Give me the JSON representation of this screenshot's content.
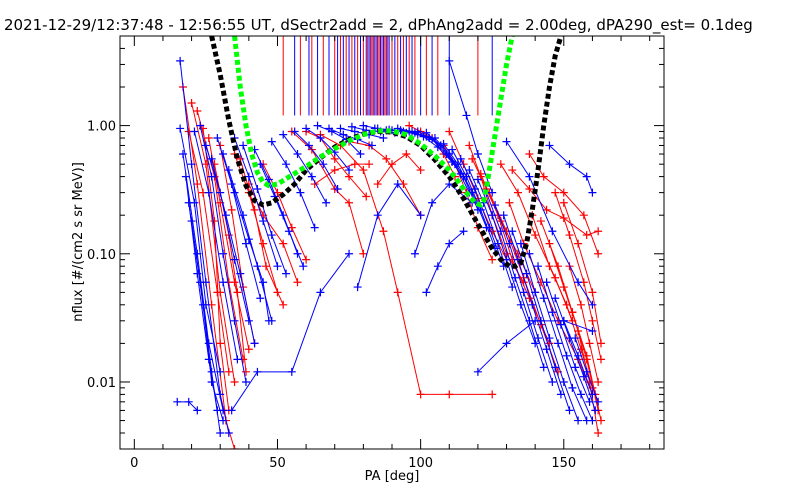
{
  "chart_data": {
    "type": "scatter",
    "title": "2021-12-29/12:37:48 - 12:56:55 UT, dSectr2add = 2, dPhAng2add = 2.00deg, dPA290_est=   0.1deg",
    "xlabel": "PA [deg]",
    "ylabel": "nflux [#/(cm2 s sr MeV)]",
    "xlim": [
      -5,
      185
    ],
    "ylim": [
      0.003,
      5.0
    ],
    "yscale": "log",
    "grid": false,
    "xticks": [
      0,
      50,
      100,
      150
    ],
    "xtick_labels": [
      "0",
      "50",
      "100",
      "150"
    ],
    "yticks": [
      0.01,
      0.1,
      1.0
    ],
    "ytick_labels": [
      "0.01",
      "0.10",
      "1.00"
    ],
    "colors": {
      "red": "#ff0000",
      "blue": "#0000ff",
      "black": "#000000",
      "green": "#00ff00"
    },
    "series": [
      {
        "color": "black",
        "style": "dashed",
        "x": [
          27,
          30,
          33,
          36,
          39,
          42,
          45,
          48,
          52,
          56,
          60,
          65,
          70,
          75,
          80,
          85,
          90,
          95,
          100,
          105,
          110,
          115,
          120,
          125,
          128,
          131,
          133,
          135,
          137,
          139,
          141,
          143,
          145,
          147,
          149
        ],
        "y": [
          5.0,
          2.5,
          1.1,
          0.55,
          0.34,
          0.26,
          0.24,
          0.25,
          0.29,
          0.35,
          0.45,
          0.56,
          0.68,
          0.78,
          0.86,
          0.9,
          0.89,
          0.82,
          0.7,
          0.54,
          0.4,
          0.27,
          0.17,
          0.11,
          0.09,
          0.08,
          0.08,
          0.085,
          0.12,
          0.22,
          0.45,
          1.0,
          2.0,
          3.5,
          5.0
        ]
      },
      {
        "color": "green",
        "style": "dashed",
        "x": [
          35,
          37,
          39,
          41,
          43,
          45,
          47,
          50,
          55,
          60,
          65,
          70,
          75,
          80,
          85,
          90,
          95,
          100,
          105,
          110,
          113,
          116,
          119,
          121,
          122,
          123,
          124,
          126,
          128,
          130,
          132
        ],
        "y": [
          5.0,
          2.0,
          1.0,
          0.6,
          0.43,
          0.36,
          0.34,
          0.35,
          0.41,
          0.48,
          0.57,
          0.66,
          0.76,
          0.85,
          0.91,
          0.91,
          0.85,
          0.72,
          0.58,
          0.45,
          0.37,
          0.3,
          0.25,
          0.24,
          0.26,
          0.33,
          0.45,
          0.85,
          1.6,
          3.0,
          5.0
        ]
      }
    ],
    "rays_x": [
      52,
      56,
      58,
      61,
      62,
      64,
      66,
      68,
      70,
      71,
      72,
      73,
      74,
      75,
      76,
      77,
      78,
      79,
      80,
      81,
      81.5,
      82,
      82.5,
      83,
      83.5,
      84,
      84.5,
      85,
      85.5,
      86,
      86.5,
      87,
      87.5,
      88,
      88.5,
      89,
      90,
      91,
      92,
      93,
      94,
      95,
      96,
      97,
      98,
      100,
      102,
      104,
      106,
      110,
      120,
      125
    ],
    "rays_y_bottom": 1.2,
    "red_points": [
      [
        17,
        2.0,
        22,
        0.35,
        27,
        0.04,
        32,
        0.005,
        35,
        0.003
      ],
      [
        20,
        1.5,
        25,
        0.5,
        30,
        0.05,
        35,
        0.01
      ],
      [
        19,
        0.9,
        24,
        0.3,
        29,
        0.05,
        33,
        0.012
      ],
      [
        22,
        1.3,
        28,
        0.4,
        33,
        0.06,
        38,
        0.015
      ],
      [
        24,
        0.95,
        28,
        0.18,
        30,
        0.02,
        33,
        0.006
      ],
      [
        26,
        0.8,
        30,
        0.25,
        35,
        0.06,
        40,
        0.018
      ],
      [
        30,
        0.7,
        34,
        0.22,
        38,
        0.055,
        42,
        0.02
      ],
      [
        28,
        0.5,
        33,
        0.14,
        36,
        0.05,
        39,
        0.012
      ],
      [
        35,
        0.6,
        40,
        0.3,
        45,
        0.12,
        50,
        0.05
      ],
      [
        37,
        0.55,
        42,
        0.22,
        46,
        0.08,
        52,
        0.04
      ],
      [
        40,
        0.35,
        45,
        0.2,
        52,
        0.12,
        57,
        0.06
      ],
      [
        45,
        0.5,
        50,
        0.3,
        55,
        0.16,
        60,
        0.09
      ],
      [
        60,
        0.9,
        65,
        0.8,
        70,
        0.55,
        75,
        0.4,
        81,
        0.28
      ],
      [
        65,
        0.85,
        72,
        0.7,
        80,
        0.45,
        87,
        0.15,
        92,
        0.05,
        100,
        0.008,
        110,
        0.008,
        125,
        0.008
      ],
      [
        75,
        0.75,
        82,
        0.7,
        88,
        0.55,
        94,
        0.35,
        100,
        0.2
      ],
      [
        85,
        0.35,
        90,
        0.5,
        95,
        0.6,
        100,
        0.45
      ],
      [
        96,
        1.0,
        100,
        0.9,
        104,
        0.8,
        108,
        0.6,
        112,
        0.4
      ],
      [
        108,
        0.7,
        112,
        0.5,
        116,
        0.3,
        120,
        0.16,
        125,
        0.09
      ],
      [
        110,
        0.9,
        115,
        0.5,
        120,
        0.27,
        125,
        0.15,
        130,
        0.09
      ],
      [
        117,
        0.7,
        121,
        0.4,
        125,
        0.2,
        130,
        0.1,
        136,
        0.06
      ],
      [
        118,
        0.55,
        123,
        0.32,
        128,
        0.18,
        134,
        0.1,
        140,
        0.05
      ],
      [
        121,
        0.42,
        127,
        0.2,
        132,
        0.09,
        138,
        0.045,
        145,
        0.02
      ],
      [
        124,
        0.3,
        130,
        0.15,
        136,
        0.065,
        142,
        0.028,
        148,
        0.012
      ],
      [
        128,
        0.5,
        134,
        0.3,
        140,
        0.14,
        147,
        0.065,
        153,
        0.03
      ],
      [
        132,
        0.45,
        138,
        0.32,
        144,
        0.22,
        150,
        0.19,
        158,
        0.14,
        162,
        0.15
      ],
      [
        131,
        0.25,
        136,
        0.12,
        142,
        0.06,
        148,
        0.03,
        155,
        0.015,
        160,
        0.008
      ],
      [
        138,
        0.6,
        143,
        0.4,
        150,
        0.3,
        157,
        0.2,
        162,
        0.1
      ],
      [
        139,
        0.2,
        145,
        0.08,
        151,
        0.04,
        156,
        0.018,
        160,
        0.009
      ],
      [
        142,
        0.18,
        148,
        0.08,
        153,
        0.035,
        158,
        0.015,
        162,
        0.006
      ],
      [
        145,
        0.12,
        150,
        0.055,
        155,
        0.025,
        159,
        0.01,
        162,
        0.004
      ],
      [
        147,
        0.3,
        152,
        0.14,
        157,
        0.06,
        160,
        0.03,
        163,
        0.015
      ],
      [
        150,
        0.25,
        155,
        0.12,
        160,
        0.05,
        163,
        0.02
      ],
      [
        152,
        0.08,
        156,
        0.04,
        159,
        0.02,
        162,
        0.01
      ],
      [
        153,
        0.035,
        158,
        0.016,
        161,
        0.008,
        163,
        0.005
      ],
      [
        55,
        0.9,
        62,
        0.65,
        70,
        0.32,
        75,
        0.25,
        80,
        0.1
      ],
      [
        63,
        0.35,
        70,
        0.45,
        77,
        0.5,
        82,
        0.5
      ]
    ],
    "blue_points": [
      [
        16,
        3.2,
        20,
        0.5,
        25,
        0.06,
        30,
        0.008,
        33,
        0.004
      ],
      [
        16,
        0.95,
        21,
        0.25,
        25,
        0.04,
        30,
        0.012
      ],
      [
        17,
        0.6,
        22,
        0.1,
        26,
        0.02,
        31,
        0.006
      ],
      [
        18,
        0.4,
        22,
        0.07,
        26,
        0.015,
        29,
        0.006
      ],
      [
        19,
        0.25,
        23,
        0.06,
        27,
        0.012,
        30,
        0.004
      ],
      [
        20,
        0.18,
        24,
        0.04,
        27,
        0.01,
        31,
        0.005
      ],
      [
        15,
        0.007,
        19,
        0.007,
        22,
        0.006
      ],
      [
        21,
        0.9,
        26,
        0.3,
        31,
        0.06,
        36,
        0.015
      ],
      [
        23,
        1.0,
        27,
        0.4,
        31,
        0.1,
        35,
        0.03,
        39,
        0.01
      ],
      [
        25,
        0.7,
        30,
        0.3,
        35,
        0.09,
        40,
        0.03
      ],
      [
        27,
        0.55,
        32,
        0.2,
        37,
        0.07,
        42,
        0.02
      ],
      [
        29,
        0.8,
        34,
        0.35,
        39,
        0.12,
        44,
        0.045
      ],
      [
        31,
        0.6,
        35,
        0.3,
        40,
        0.13,
        45,
        0.06,
        47,
        0.03
      ],
      [
        33,
        0.45,
        38,
        0.2,
        43,
        0.08,
        48,
        0.03
      ],
      [
        35,
        0.8,
        40,
        0.4,
        45,
        0.18,
        50,
        0.08
      ],
      [
        38,
        0.7,
        43,
        0.32,
        48,
        0.14,
        53,
        0.07
      ],
      [
        42,
        0.65,
        47,
        0.38,
        52,
        0.2,
        57,
        0.1
      ],
      [
        44,
        0.5,
        49,
        0.28,
        54,
        0.15,
        59,
        0.08
      ],
      [
        48,
        0.75,
        53,
        0.5,
        58,
        0.3,
        63,
        0.16
      ],
      [
        34,
        0.006,
        43,
        0.012,
        55,
        0.012,
        65,
        0.05,
        75,
        0.1
      ],
      [
        52,
        0.85,
        57,
        0.6,
        62,
        0.4,
        67,
        0.25
      ],
      [
        56,
        0.9,
        61,
        0.7,
        66,
        0.5,
        71,
        0.32
      ],
      [
        60,
        0.95,
        65,
        0.8,
        70,
        0.62,
        75,
        0.45
      ],
      [
        64,
        1.0,
        69,
        0.9,
        74,
        0.78,
        79,
        0.6
      ],
      [
        68,
        0.95,
        73,
        0.85,
        78,
        0.78,
        83,
        0.7
      ],
      [
        72,
        0.95,
        77,
        0.9,
        82,
        0.85,
        87,
        0.8
      ],
      [
        76,
        0.98,
        81,
        0.92,
        86,
        0.9,
        91,
        0.88
      ],
      [
        80,
        1.0,
        85,
        0.95,
        90,
        0.92,
        95,
        0.88
      ],
      [
        84,
        0.95,
        89,
        0.93,
        94,
        0.9,
        99,
        0.85
      ],
      [
        88,
        0.92,
        93,
        0.92,
        98,
        0.88,
        103,
        0.8
      ],
      [
        92,
        0.95,
        97,
        0.9,
        102,
        0.82,
        107,
        0.7
      ],
      [
        96,
        0.9,
        101,
        0.82,
        106,
        0.68,
        111,
        0.52
      ],
      [
        99,
        0.9,
        104,
        0.78,
        109,
        0.6,
        114,
        0.42
      ],
      [
        102,
        0.88,
        107,
        0.7,
        112,
        0.5,
        117,
        0.3
      ],
      [
        105,
        0.8,
        110,
        0.6,
        115,
        0.4,
        120,
        0.22
      ],
      [
        108,
        0.72,
        113,
        0.5,
        118,
        0.3,
        123,
        0.16
      ],
      [
        111,
        0.65,
        116,
        0.4,
        121,
        0.22,
        126,
        0.11
      ],
      [
        114,
        0.55,
        119,
        0.32,
        124,
        0.16,
        129,
        0.08
      ],
      [
        117,
        0.45,
        122,
        0.25,
        127,
        0.12,
        132,
        0.055
      ],
      [
        120,
        0.38,
        125,
        0.2,
        130,
        0.09,
        135,
        0.04,
        140,
        0.02
      ],
      [
        123,
        0.3,
        128,
        0.15,
        133,
        0.065,
        138,
        0.03,
        143,
        0.013
      ],
      [
        126,
        0.24,
        131,
        0.12,
        136,
        0.05,
        141,
        0.022,
        146,
        0.01
      ],
      [
        129,
        0.2,
        134,
        0.09,
        139,
        0.04,
        144,
        0.018,
        149,
        0.008
      ],
      [
        132,
        0.15,
        137,
        0.07,
        142,
        0.03,
        147,
        0.013,
        152,
        0.006
      ],
      [
        135,
        0.12,
        140,
        0.05,
        145,
        0.022,
        150,
        0.01,
        155,
        0.005
      ],
      [
        138,
        0.1,
        143,
        0.045,
        148,
        0.02,
        153,
        0.009,
        158,
        0.005
      ],
      [
        141,
        0.08,
        146,
        0.035,
        151,
        0.016,
        156,
        0.008,
        160,
        0.005
      ],
      [
        144,
        0.06,
        149,
        0.028,
        154,
        0.013,
        159,
        0.007
      ],
      [
        147,
        0.045,
        152,
        0.022,
        157,
        0.011,
        161,
        0.006
      ],
      [
        150,
        0.03,
        155,
        0.016,
        160,
        0.008
      ],
      [
        154,
        0.022,
        158,
        0.012,
        162,
        0.007
      ],
      [
        130,
        0.75,
        138,
        0.4,
        146,
        0.15,
        155,
        0.06,
        160,
        0.04
      ],
      [
        145,
        0.7,
        152,
        0.5,
        158,
        0.4,
        160,
        0.3
      ],
      [
        110,
        3.2,
        116,
        1.2,
        120,
        0.6,
        125,
        0.3
      ],
      [
        120,
        0.012,
        130,
        0.02,
        140,
        0.03,
        150,
        0.03,
        160,
        0.025
      ],
      [
        78,
        0.055,
        85,
        0.2,
        92,
        0.35,
        100,
        0.2
      ],
      [
        102,
        0.05,
        106,
        0.08,
        110,
        0.12,
        115,
        0.15
      ],
      [
        98,
        0.1,
        104,
        0.25,
        110,
        0.35,
        118,
        0.25
      ]
    ]
  }
}
